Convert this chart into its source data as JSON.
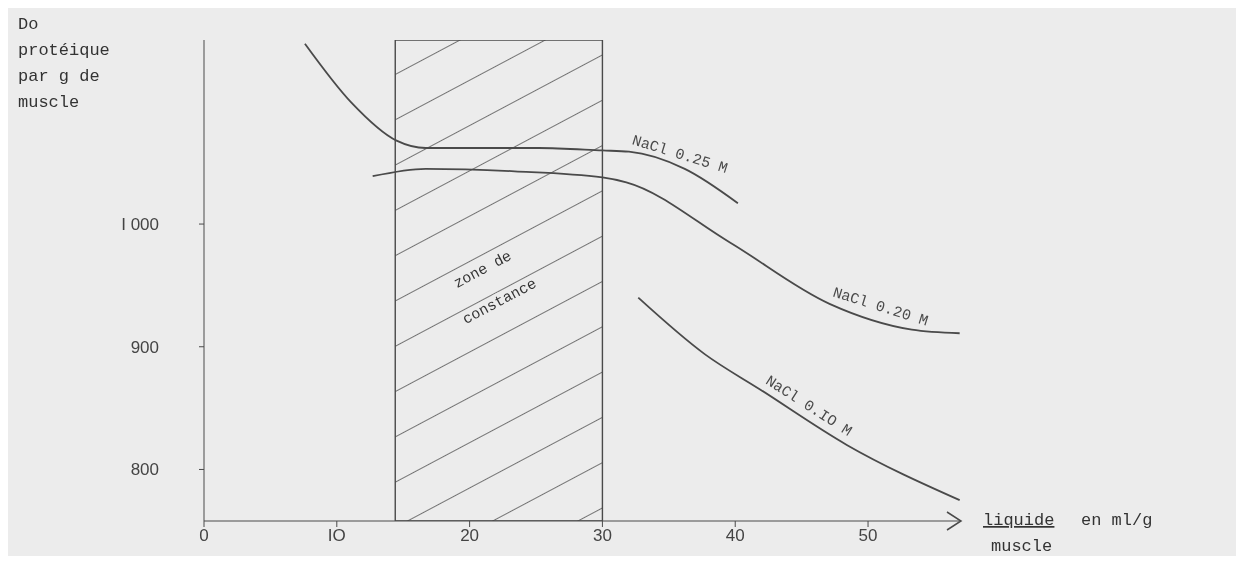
{
  "chart_data": {
    "type": "line",
    "ylabel": "Do protéique par g de muscle",
    "xlabel": "liquide en ml/g muscle",
    "series": [
      {
        "name": "NaCl 0.25 M",
        "color": "#4a4a4a",
        "x": [
          7.6,
          11.1,
          14.5,
          16.7,
          25.2,
          30,
          32,
          36.2,
          40.2
        ],
        "values": [
          1147,
          1099,
          1068,
          1062,
          1062,
          1060,
          1059,
          1045,
          1017
        ]
      },
      {
        "name": "NaCl 0.20 M",
        "color": "#4a4a4a",
        "x": [
          12.7,
          16.7,
          23.4,
          30,
          31.8,
          39.6,
          47.1,
          53.3,
          56.9
        ],
        "values": [
          1039,
          1045,
          1043,
          1038,
          1034,
          985,
          935,
          914,
          911
        ]
      },
      {
        "name": "NaCl 0.IO M",
        "color": "#4a4a4a",
        "x": [
          32.7,
          37.7,
          41.9,
          48.4,
          56.9
        ],
        "values": [
          940,
          894,
          865,
          820,
          775
        ]
      }
    ],
    "xlim": [
      0,
      57
    ],
    "xticks": [
      0,
      {
        "value": 10,
        "label": "IO"
      },
      20,
      30,
      40,
      50
    ],
    "ylim": [
      758,
      1150
    ],
    "yticks": [
      800,
      900,
      {
        "value": 1000,
        "label": "I 000"
      }
    ],
    "bands": [
      {
        "axis": "x",
        "from": 14.4,
        "to": 30,
        "label": "zone de constance",
        "color": "#4a4a4a"
      }
    ],
    "grid": false,
    "legend": false,
    "marker": "none",
    "line_style": "solid"
  }
}
